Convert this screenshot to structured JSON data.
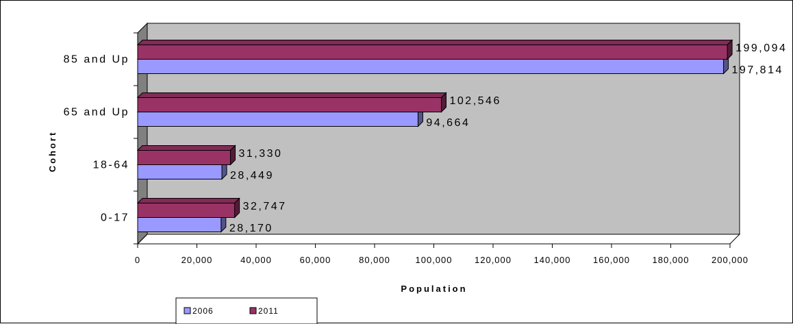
{
  "chart_data": {
    "type": "bar",
    "orientation": "horizontal",
    "style": "3d",
    "categories": [
      "0-17",
      "18-64",
      "65 and Up",
      "85 and Up"
    ],
    "series": [
      {
        "name": "2006",
        "values": [
          28170,
          28449,
          94664,
          197814
        ],
        "labels": [
          "28,170",
          "28,449",
          "94,664",
          "197,814"
        ],
        "color": "#9999FF"
      },
      {
        "name": "2011",
        "values": [
          32747,
          31330,
          102546,
          199094
        ],
        "labels": [
          "32,747",
          "31,330",
          "102,546",
          "199,094"
        ],
        "color": "#993366"
      }
    ],
    "xlabel": "Population",
    "ylabel": "Cohort",
    "xlim": [
      0,
      200000
    ],
    "xticks": [
      0,
      20000,
      40000,
      60000,
      80000,
      100000,
      120000,
      140000,
      160000,
      180000,
      200000
    ],
    "xtick_labels": [
      "0",
      "20,000",
      "40,000",
      "60,000",
      "80,000",
      "100,000",
      "120,000",
      "140,000",
      "160,000",
      "180,000",
      "200,000"
    ],
    "grid": false,
    "legend_position": "bottom-left",
    "plot_background": "#C0C0C0",
    "side_wall": "#808080"
  }
}
